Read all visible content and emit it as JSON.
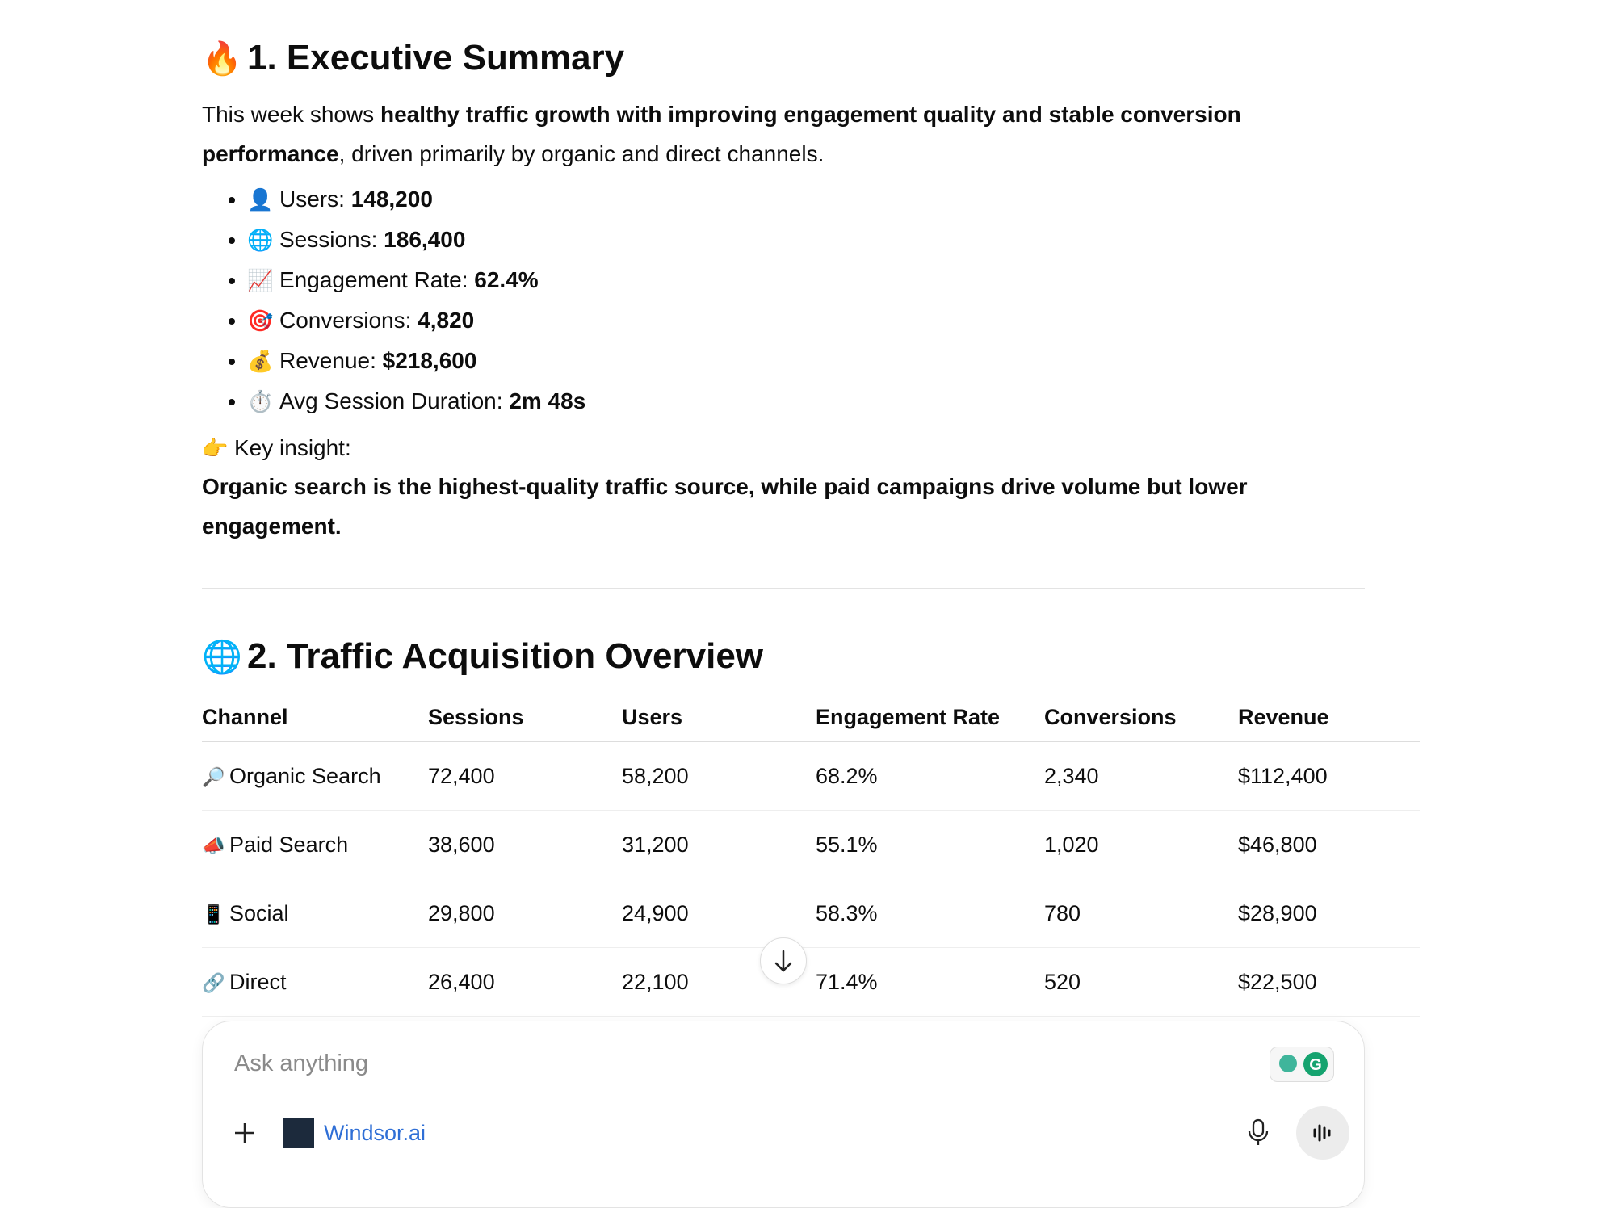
{
  "summary": {
    "heading": "1. Executive Summary",
    "intro": [
      "This week shows ",
      "healthy traffic growth with improving engagement quality and stable conversion performance",
      ", driven primarily by organic and direct channels."
    ],
    "metrics": [
      {
        "label": "Users: ",
        "value": "148,200"
      },
      {
        "label": "Sessions: ",
        "value": "186,400"
      },
      {
        "label": "Engagement Rate: ",
        "value": "62.4%"
      },
      {
        "label": "Conversions: ",
        "value": "4,820"
      },
      {
        "label": "Revenue: ",
        "value": "$218,600"
      },
      {
        "label": "Avg Session Duration: ",
        "value": "2m 48s"
      }
    ],
    "insight_label": "Key insight:",
    "insight": "Organic search is the highest-quality traffic source, while paid campaigns drive volume but lower engagement."
  },
  "traffic": {
    "heading": "2. Traffic Acquisition Overview",
    "table": {
      "columns": [
        "Channel",
        "Sessions",
        "Users",
        "Engagement Rate",
        "Conversions",
        "Revenue"
      ],
      "rows": [
        [
          "Organic Search",
          "72,400",
          "58,200",
          "68.2%",
          "2,340",
          "$112,400"
        ],
        [
          "Paid Search",
          "38,600",
          "31,200",
          "55.1%",
          "1,020",
          "$46,800"
        ],
        [
          "Social",
          "29,800",
          "24,900",
          "58.3%",
          "780",
          "$28,900"
        ],
        [
          "Direct",
          "26,400",
          "22,100",
          "71.4%",
          "520",
          "$22,500"
        ]
      ]
    }
  },
  "composer": {
    "placeholder": "Ask anything",
    "connector": "Windsor.ai"
  }
}
